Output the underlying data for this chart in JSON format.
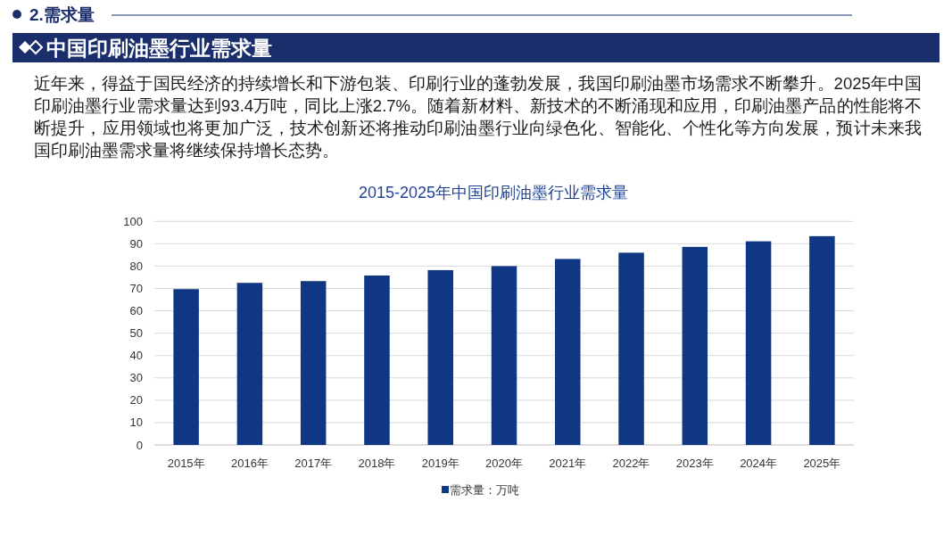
{
  "chart_data": {
    "type": "bar",
    "title": "2015-2025年中国印刷油墨行业需求量",
    "categories": [
      "2015年",
      "2016年",
      "2017年",
      "2018年",
      "2019年",
      "2020年",
      "2021年",
      "2022年",
      "2023年",
      "2024年",
      "2025年"
    ],
    "series": [
      {
        "name": "需求量：万吨",
        "color": "#0f3783",
        "values": [
          69.7,
          72.5,
          73.3,
          75.8,
          78.2,
          80.0,
          83.2,
          86.0,
          88.6,
          91.1,
          93.4
        ]
      }
    ],
    "ylim": [
      0,
      100
    ],
    "yticks": [
      0,
      10,
      20,
      30,
      40,
      50,
      60,
      70,
      80,
      90,
      100
    ],
    "grid": "y",
    "legend": "bottom",
    "annotations": [
      "2.需求量",
      "中国印刷油墨行业需求量",
      "近年来，得益于国民经济的持续增长和下游包装、印刷行业的蓬勃发展，我国印刷油墨市场需求不断攀升。2025年中国印刷油墨行业需求量达到93.4万吨，同比上涨2.7%。随着新材料、新技术的不断涌现和应用，印刷油墨产品的性能将不断提升，应用领域也将更加广泛，技术创新还将推动印刷油墨行业向绿色化、智能化、个性化等方向发展，预计未来我国印刷油墨需求量将继续保持增长态势。"
    ]
  }
}
